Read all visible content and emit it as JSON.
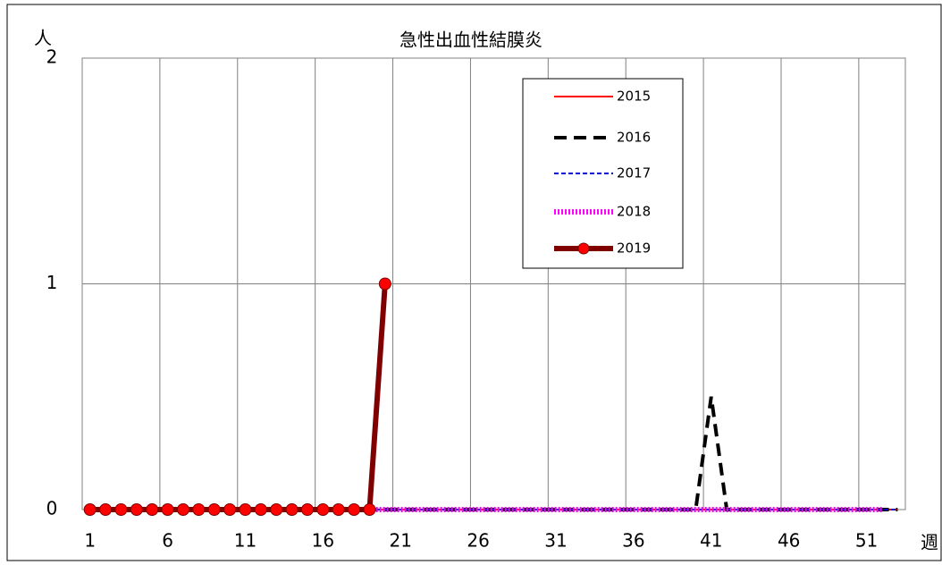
{
  "chart_data": {
    "type": "line",
    "title": "急性出血性結膜炎",
    "y_unit": "人",
    "x_unit": "週",
    "categories": [
      "1",
      null,
      null,
      null,
      null,
      "6",
      null,
      null,
      null,
      null,
      "11",
      null,
      null,
      null,
      null,
      "16",
      null,
      null,
      null,
      null,
      "21",
      null,
      null,
      null,
      null,
      "26",
      null,
      null,
      null,
      null,
      "31",
      null,
      null,
      null,
      null,
      "36",
      null,
      null,
      null,
      null,
      "41",
      null,
      null,
      null,
      null,
      "46",
      null,
      null,
      null,
      null,
      "51",
      null,
      null
    ],
    "ylim": [
      0,
      2
    ],
    "yticks": [
      0,
      1,
      2
    ],
    "grid": true,
    "series": [
      {
        "name": "2015",
        "color": "#ff0000",
        "line_style": "solid",
        "width": 2,
        "values": [
          0,
          0,
          0,
          0,
          0,
          0,
          0,
          0,
          0,
          0,
          0,
          0,
          0,
          0,
          0,
          0,
          0,
          0,
          0,
          0,
          0,
          0,
          0,
          0,
          0,
          0,
          0,
          0,
          0,
          0,
          0,
          0,
          0,
          0,
          0,
          0,
          0,
          0,
          0,
          0,
          0,
          0,
          0,
          0,
          0,
          0,
          0,
          0,
          0,
          0,
          0,
          0,
          0
        ]
      },
      {
        "name": "2016",
        "color": "#000000",
        "line_style": "dashed",
        "width": 4,
        "values": [
          0,
          0,
          0,
          0,
          0,
          0,
          0,
          0,
          0,
          0,
          0,
          0,
          0,
          0,
          0,
          0,
          0,
          0,
          0,
          0,
          0,
          0,
          0,
          0,
          0,
          0,
          0,
          0,
          0,
          0,
          0,
          0,
          0,
          0,
          0,
          0,
          0,
          0,
          0,
          0,
          0.5,
          0,
          0,
          0,
          0,
          0,
          0,
          0,
          0,
          0,
          0,
          0,
          0
        ]
      },
      {
        "name": "2017",
        "color": "#0000cc",
        "line_style": "dashed",
        "width": 2,
        "values": [
          0,
          0,
          0,
          0,
          0,
          0,
          0,
          0,
          0,
          0,
          0,
          0,
          0,
          0,
          0,
          0,
          0,
          0,
          0,
          0,
          0,
          0,
          0,
          0,
          0,
          0,
          0,
          0,
          0,
          0,
          0,
          0,
          0,
          0,
          0,
          0,
          0,
          0,
          0,
          0,
          0,
          0,
          0,
          0,
          0,
          0,
          0,
          0,
          0,
          0,
          0,
          0,
          0
        ]
      },
      {
        "name": "2018",
        "color": "#ff00ff",
        "line_style": "dotted",
        "width": 6,
        "values": [
          0,
          0,
          0,
          0,
          0,
          0,
          0,
          0,
          0,
          0,
          0,
          0,
          0,
          0,
          0,
          0,
          0,
          0,
          0,
          0,
          0,
          0,
          0,
          0,
          0,
          0,
          0,
          0,
          0,
          0,
          0,
          0,
          0,
          0,
          0,
          0,
          0,
          0,
          0,
          0,
          0,
          0,
          0,
          0,
          0,
          0,
          0,
          0,
          0,
          0,
          0,
          0,
          null
        ]
      },
      {
        "name": "2019",
        "color": "#800000",
        "marker": "circle",
        "marker_color": "#ff0000",
        "line_style": "solid",
        "width": 6,
        "values": [
          0,
          0,
          0,
          0,
          0,
          0,
          0,
          0,
          0,
          0,
          0,
          0,
          0,
          0,
          0,
          0,
          0,
          0,
          0,
          1,
          null,
          null,
          null,
          null,
          null,
          null,
          null,
          null,
          null,
          null,
          null,
          null,
          null,
          null,
          null,
          null,
          null,
          null,
          null,
          null,
          null,
          null,
          null,
          null,
          null,
          null,
          null,
          null,
          null,
          null,
          null,
          null,
          null
        ]
      }
    ]
  }
}
